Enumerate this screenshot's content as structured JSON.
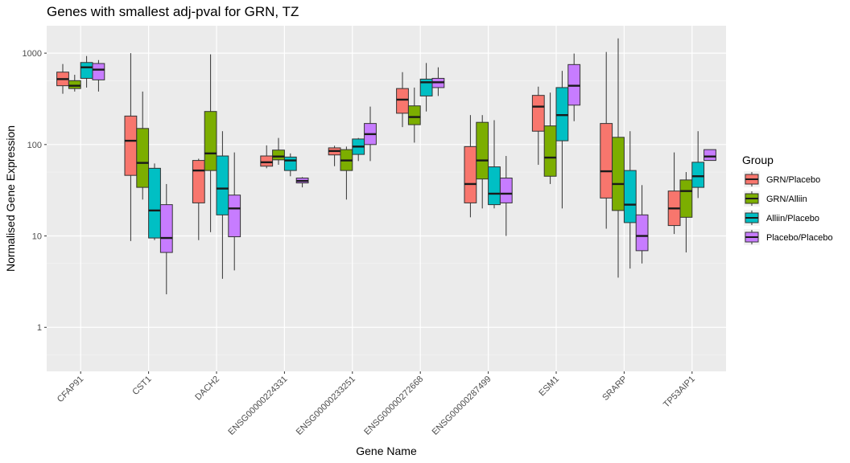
{
  "chart_data": {
    "type": "box",
    "title": "Genes with smallest adj-pval for GRN, TZ",
    "xlabel": "Gene Name",
    "ylabel": "Normalised Gene Expression",
    "yscale": "log10",
    "ylim": [
      0.33,
      440
    ],
    "yticks": [
      1,
      10,
      100,
      1000
    ],
    "ytick_labels": [
      "1",
      "10",
      "100",
      "1000"
    ],
    "grid": true,
    "legend": {
      "title": "Group",
      "position": "right"
    },
    "groups": [
      {
        "name": "GRN/Placebo",
        "color": "#F8766D"
      },
      {
        "name": "GRN/Alliin",
        "color": "#7CAE00"
      },
      {
        "name": "Alliin/Placebo",
        "color": "#00BFC4"
      },
      {
        "name": "Placebo/Placebo",
        "color": "#C77CFF"
      }
    ],
    "categories": [
      "CFAP91",
      "CST1",
      "DACH2",
      "ENSG00000224331",
      "ENSG00000233251",
      "ENSG00000272668",
      "ENSG00000287499",
      "ESM1",
      "SRARP",
      "TP53AIP1"
    ],
    "boxes": [
      [
        {
          "min": 360,
          "q1": 440,
          "median": 520,
          "q3": 620,
          "max": 760
        },
        {
          "min": 380,
          "q1": 410,
          "median": 440,
          "q3": 500,
          "max": 580
        },
        {
          "min": 420,
          "q1": 530,
          "median": 700,
          "q3": 790,
          "max": 930
        },
        {
          "min": 380,
          "q1": 510,
          "median": 660,
          "q3": 770,
          "max": 840
        }
      ],
      [
        {
          "min": 8.8,
          "q1": 46,
          "median": 110,
          "q3": 205,
          "max": 1000
        },
        {
          "min": 25,
          "q1": 34,
          "median": 63,
          "q3": 150,
          "max": 380
        },
        {
          "min": 9,
          "q1": 9.5,
          "median": 19,
          "q3": 55,
          "max": 62
        },
        {
          "min": 2.3,
          "q1": 6.6,
          "median": 9.5,
          "q3": 22,
          "max": 37
        }
      ],
      [
        {
          "min": 9,
          "q1": 23,
          "median": 52,
          "q3": 67,
          "max": 70
        },
        {
          "min": 11,
          "q1": 52,
          "median": 80,
          "q3": 230,
          "max": 970
        },
        {
          "min": 3.4,
          "q1": 17,
          "median": 33,
          "q3": 75,
          "max": 140
        },
        {
          "min": 4.2,
          "q1": 9.8,
          "median": 20,
          "q3": 28,
          "max": 82
        }
      ],
      [
        {
          "min": 55,
          "q1": 58,
          "median": 64,
          "q3": 75,
          "max": 98
        },
        {
          "min": 60,
          "q1": 68,
          "median": 74,
          "q3": 87,
          "max": 118
        },
        {
          "min": 45,
          "q1": 52,
          "median": 67,
          "q3": 73,
          "max": 80
        },
        {
          "min": 34,
          "q1": 38,
          "median": 40,
          "q3": 43,
          "max": 44
        }
      ],
      [
        {
          "min": 58,
          "q1": 77,
          "median": 85,
          "q3": 92,
          "max": 97
        },
        {
          "min": 25,
          "q1": 52,
          "median": 67,
          "q3": 88,
          "max": 95
        },
        {
          "min": 66,
          "q1": 78,
          "median": 95,
          "q3": 115,
          "max": 118
        },
        {
          "min": 66,
          "q1": 100,
          "median": 130,
          "q3": 170,
          "max": 260
        }
      ],
      [
        {
          "min": 155,
          "q1": 220,
          "median": 310,
          "q3": 410,
          "max": 620
        },
        {
          "min": 105,
          "q1": 165,
          "median": 200,
          "q3": 265,
          "max": 420
        },
        {
          "min": 230,
          "q1": 340,
          "median": 480,
          "q3": 520,
          "max": 780
        },
        {
          "min": 340,
          "q1": 420,
          "median": 480,
          "q3": 530,
          "max": 700
        }
      ],
      [
        {
          "min": 16,
          "q1": 23,
          "median": 37,
          "q3": 95,
          "max": 210
        },
        {
          "min": 20,
          "q1": 42,
          "median": 67,
          "q3": 175,
          "max": 210
        },
        {
          "min": 20,
          "q1": 22,
          "median": 29,
          "q3": 57,
          "max": 185
        },
        {
          "min": 10,
          "q1": 23,
          "median": 29,
          "q3": 43,
          "max": 75
        }
      ],
      [
        {
          "min": 60,
          "q1": 140,
          "median": 260,
          "q3": 345,
          "max": 430
        },
        {
          "min": 37,
          "q1": 45,
          "median": 72,
          "q3": 160,
          "max": 370
        },
        {
          "min": 20,
          "q1": 110,
          "median": 210,
          "q3": 420,
          "max": 640
        },
        {
          "min": 180,
          "q1": 270,
          "median": 440,
          "q3": 750,
          "max": 990
        }
      ],
      [
        {
          "min": 12,
          "q1": 26,
          "median": 51,
          "q3": 170,
          "max": 1030
        },
        {
          "min": 3.5,
          "q1": 19,
          "median": 37,
          "q3": 120,
          "max": 1450
        },
        {
          "min": 4.4,
          "q1": 14,
          "median": 22,
          "q3": 52,
          "max": 140
        },
        {
          "min": 5,
          "q1": 6.9,
          "median": 10,
          "q3": 17,
          "max": 36
        }
      ],
      [
        {
          "min": 10.5,
          "q1": 13,
          "median": 20,
          "q3": 31,
          "max": 82
        },
        {
          "min": 6.6,
          "q1": 16,
          "median": 31,
          "q3": 41,
          "max": 50
        },
        {
          "min": 26,
          "q1": 34,
          "median": 45,
          "q3": 64,
          "max": 140
        },
        {
          "min": 67,
          "q1": 67,
          "median": 74,
          "q3": 88,
          "max": 88
        }
      ]
    ]
  }
}
